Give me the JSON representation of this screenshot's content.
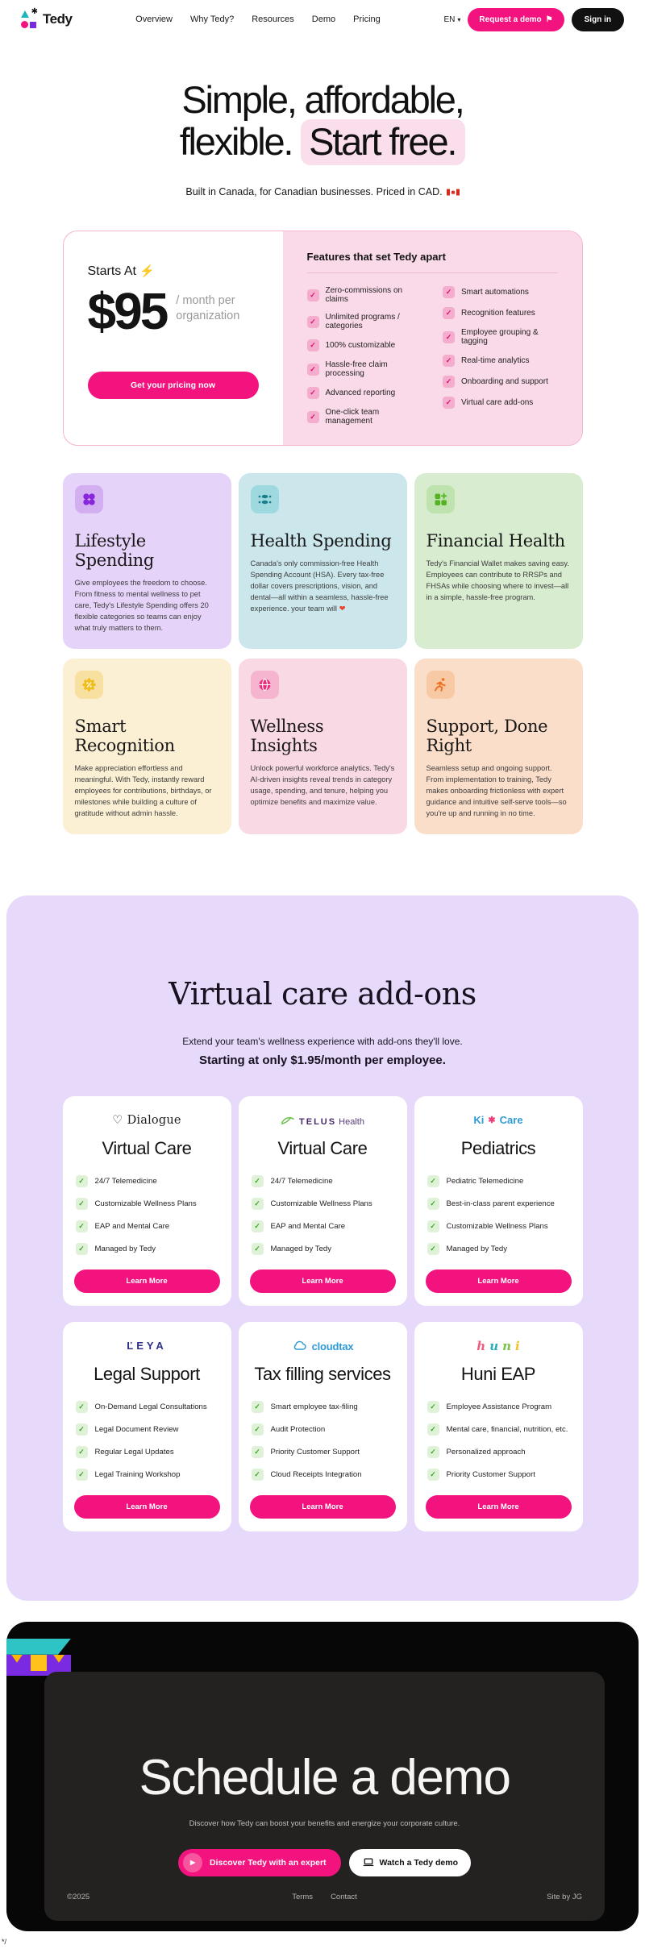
{
  "icons": {
    "check": "✓",
    "lightning": "⚡",
    "pennant": "⚑",
    "play": "▶",
    "chevron_down": "▾",
    "logo_star": "✱",
    "heart": "❤"
  },
  "colors": {
    "accent_pink": "#F3137F",
    "addons_bg": "#E6D9FA",
    "pricing_panel_pink": "#FAD9E8",
    "footer_inner": "#242220"
  },
  "header": {
    "logo_text": "Tedy",
    "nav": [
      "Overview",
      "Why Tedy?",
      "Resources",
      "Demo",
      "Pricing"
    ],
    "language": "EN",
    "request_demo_label": "Request a demo",
    "sign_in_label": "Sign in"
  },
  "hero": {
    "title_line1": "Simple, affordable,",
    "title_line2": "flexible.",
    "title_highlight": "Start free.",
    "subtitle": "Built in Canada, for Canadian businesses. Priced in CAD."
  },
  "pricing": {
    "starts_at_label": "Starts At",
    "price": "$95",
    "price_suffix": "/ month per organization",
    "cta_label": "Get your pricing now",
    "features_title": "Features that set Tedy apart",
    "features_col1": [
      "Zero-commissions on claims",
      "Unlimited programs / categories",
      "100% customizable",
      "Hassle-free claim processing",
      "Advanced reporting",
      "One-click team management"
    ],
    "features_col2": [
      "Smart automations",
      "Recognition features",
      "Employee grouping & tagging",
      "Real-time analytics",
      "Onboarding and support",
      "Virtual care add-ons"
    ]
  },
  "feature_cards": [
    {
      "title": "Lifestyle Spending",
      "body": "Give employees the freedom to choose. From fitness to mental wellness to pet care, Tedy's Lifestyle Spending offers 20 flexible categories so teams can enjoy what truly matters to them.",
      "bg": "#E5D3F9",
      "icon_bg": "#D3AFF2",
      "icon_color": "#8726DB"
    },
    {
      "title": "Health Spending",
      "body": "Canada's only commission-free Health Spending Account (HSA). Every tax-free dollar covers prescriptions, vision, and dental—all within a seamless, hassle-free experience. your team will ",
      "bg": "#CBE7EC",
      "icon_bg": "#9FD9E0",
      "icon_color": "#177E8C"
    },
    {
      "title": "Financial Health",
      "body": "Tedy's Financial Wallet makes saving easy. Employees can contribute to RRSPs and FHSAs while choosing where to invest—all in a simple, hassle-free program.",
      "bg": "#D8ECD0",
      "icon_bg": "#BEE3AE",
      "icon_color": "#54B224"
    },
    {
      "title": "Smart Recognition",
      "body": "Make appreciation effortless and meaningful. With Tedy, instantly reward employees for contributions, birthdays, or milestones while building a culture of gratitude without admin hassle.",
      "bg": "#FCF0D4",
      "icon_bg": "#F8E0A0",
      "icon_color": "#EFBE1F"
    },
    {
      "title": "Wellness Insights",
      "body": "Unlock powerful workforce analytics. Tedy's AI-driven insights reveal trends in category usage, spending, and tenure, helping you optimize benefits and maximize value.",
      "bg": "#F9D9E4",
      "icon_bg": "#F5B5CF",
      "icon_color": "#E8307E"
    },
    {
      "title": "Support, Done Right",
      "body": "Seamless setup and ongoing support. From implementation to training, Tedy makes onboarding frictionless with expert guidance and intuitive self-serve tools—so you're up and running in no time.",
      "bg": "#FBDEC9",
      "icon_bg": "#F7C9A4",
      "icon_color": "#EE7021"
    }
  ],
  "addons": {
    "title": "Virtual care add-ons",
    "subtitle": "Extend your team's wellness experience with add-ons they'll love.",
    "pricing_note": "Starting at only $1.95/month per employee.",
    "cards": [
      {
        "brand": "Dialogue",
        "brand_parts": [
          {
            "text": "♡ "
          },
          {
            "text": "Dialogue"
          }
        ],
        "title": "Virtual Care",
        "features": [
          "24/7 Telemedicine",
          "Customizable Wellness Plans",
          "EAP and Mental Care",
          "Managed by Tedy"
        ],
        "cta_label": "Learn More"
      },
      {
        "brand": "TELUS Health",
        "brand_parts": [
          {
            "text": "TELUS",
            "color": "#49286E",
            "cls": "telus-word"
          },
          {
            "text": " Health",
            "color": "#5A3D7A",
            "cls": "telus-health"
          }
        ],
        "title": "Virtual Care",
        "features": [
          "24/7 Telemedicine",
          "Customizable Wellness Plans",
          "EAP and Mental Care",
          "Managed by Tedy"
        ],
        "cta_label": "Learn More"
      },
      {
        "brand": "KixCare",
        "brand_parts": [
          {
            "text": "Ki",
            "color": "#2E9BD6",
            "cls": "kix-word"
          },
          {
            "text": "✱",
            "color": "#EE3D77",
            "cls": "kix-x"
          },
          {
            "text": "Care",
            "color": "#2E9BD6",
            "cls": "kix-word"
          }
        ],
        "title": "Pediatrics",
        "features": [
          "Pediatric Telemedicine",
          "Best-in-class parent experience",
          "Customizable Wellness Plans",
          "Managed by Tedy"
        ],
        "cta_label": "Learn More"
      },
      {
        "brand": "LEYA",
        "brand_parts": [
          {
            "text": "ĽEYA",
            "color": "#2B2F86",
            "cls": "leya-word"
          }
        ],
        "title": "Legal Support",
        "features": [
          "On-Demand Legal Consultations",
          "Legal Document Review",
          "Regular Legal Updates",
          "Legal Training Workshop"
        ],
        "cta_label": "Learn More"
      },
      {
        "brand": "cloudtax",
        "brand_parts": [
          {
            "text": "cloudtax",
            "color": "#2F9BD6",
            "cls": "cloud-word"
          }
        ],
        "title": "Tax filling services",
        "features": [
          "Smart employee tax-filing",
          "Audit Protection",
          "Priority Customer Support",
          "Cloud Receipts Integration"
        ],
        "cta_label": "Learn More"
      },
      {
        "brand": "huni",
        "brand_parts": [
          {
            "text": "h",
            "color": "#EF5B81",
            "cls": "huni-letter"
          },
          {
            "text": "u",
            "color": "#27B0BC",
            "cls": "huni-letter"
          },
          {
            "text": "n",
            "color": "#7CC24A",
            "cls": "huni-letter"
          },
          {
            "text": "i",
            "color": "#F2C12E",
            "cls": "huni-letter"
          }
        ],
        "title": "Huni EAP",
        "features": [
          "Employee Assistance Program",
          "Mental care, financial, nutrition, etc.",
          "Personalized approach",
          "Priority Customer Support"
        ],
        "cta_label": "Learn More"
      }
    ]
  },
  "footer": {
    "title": "Schedule a demo",
    "subtitle": "Discover how Tedy can boost your benefits and energize your corporate culture.",
    "primary_cta": "Discover Tedy with an expert",
    "secondary_cta": "Watch a Tedy demo",
    "copyright": "©2025",
    "terms": "Terms",
    "contact": "Contact",
    "credit": "Site by JG"
  },
  "stray_text": "*/"
}
